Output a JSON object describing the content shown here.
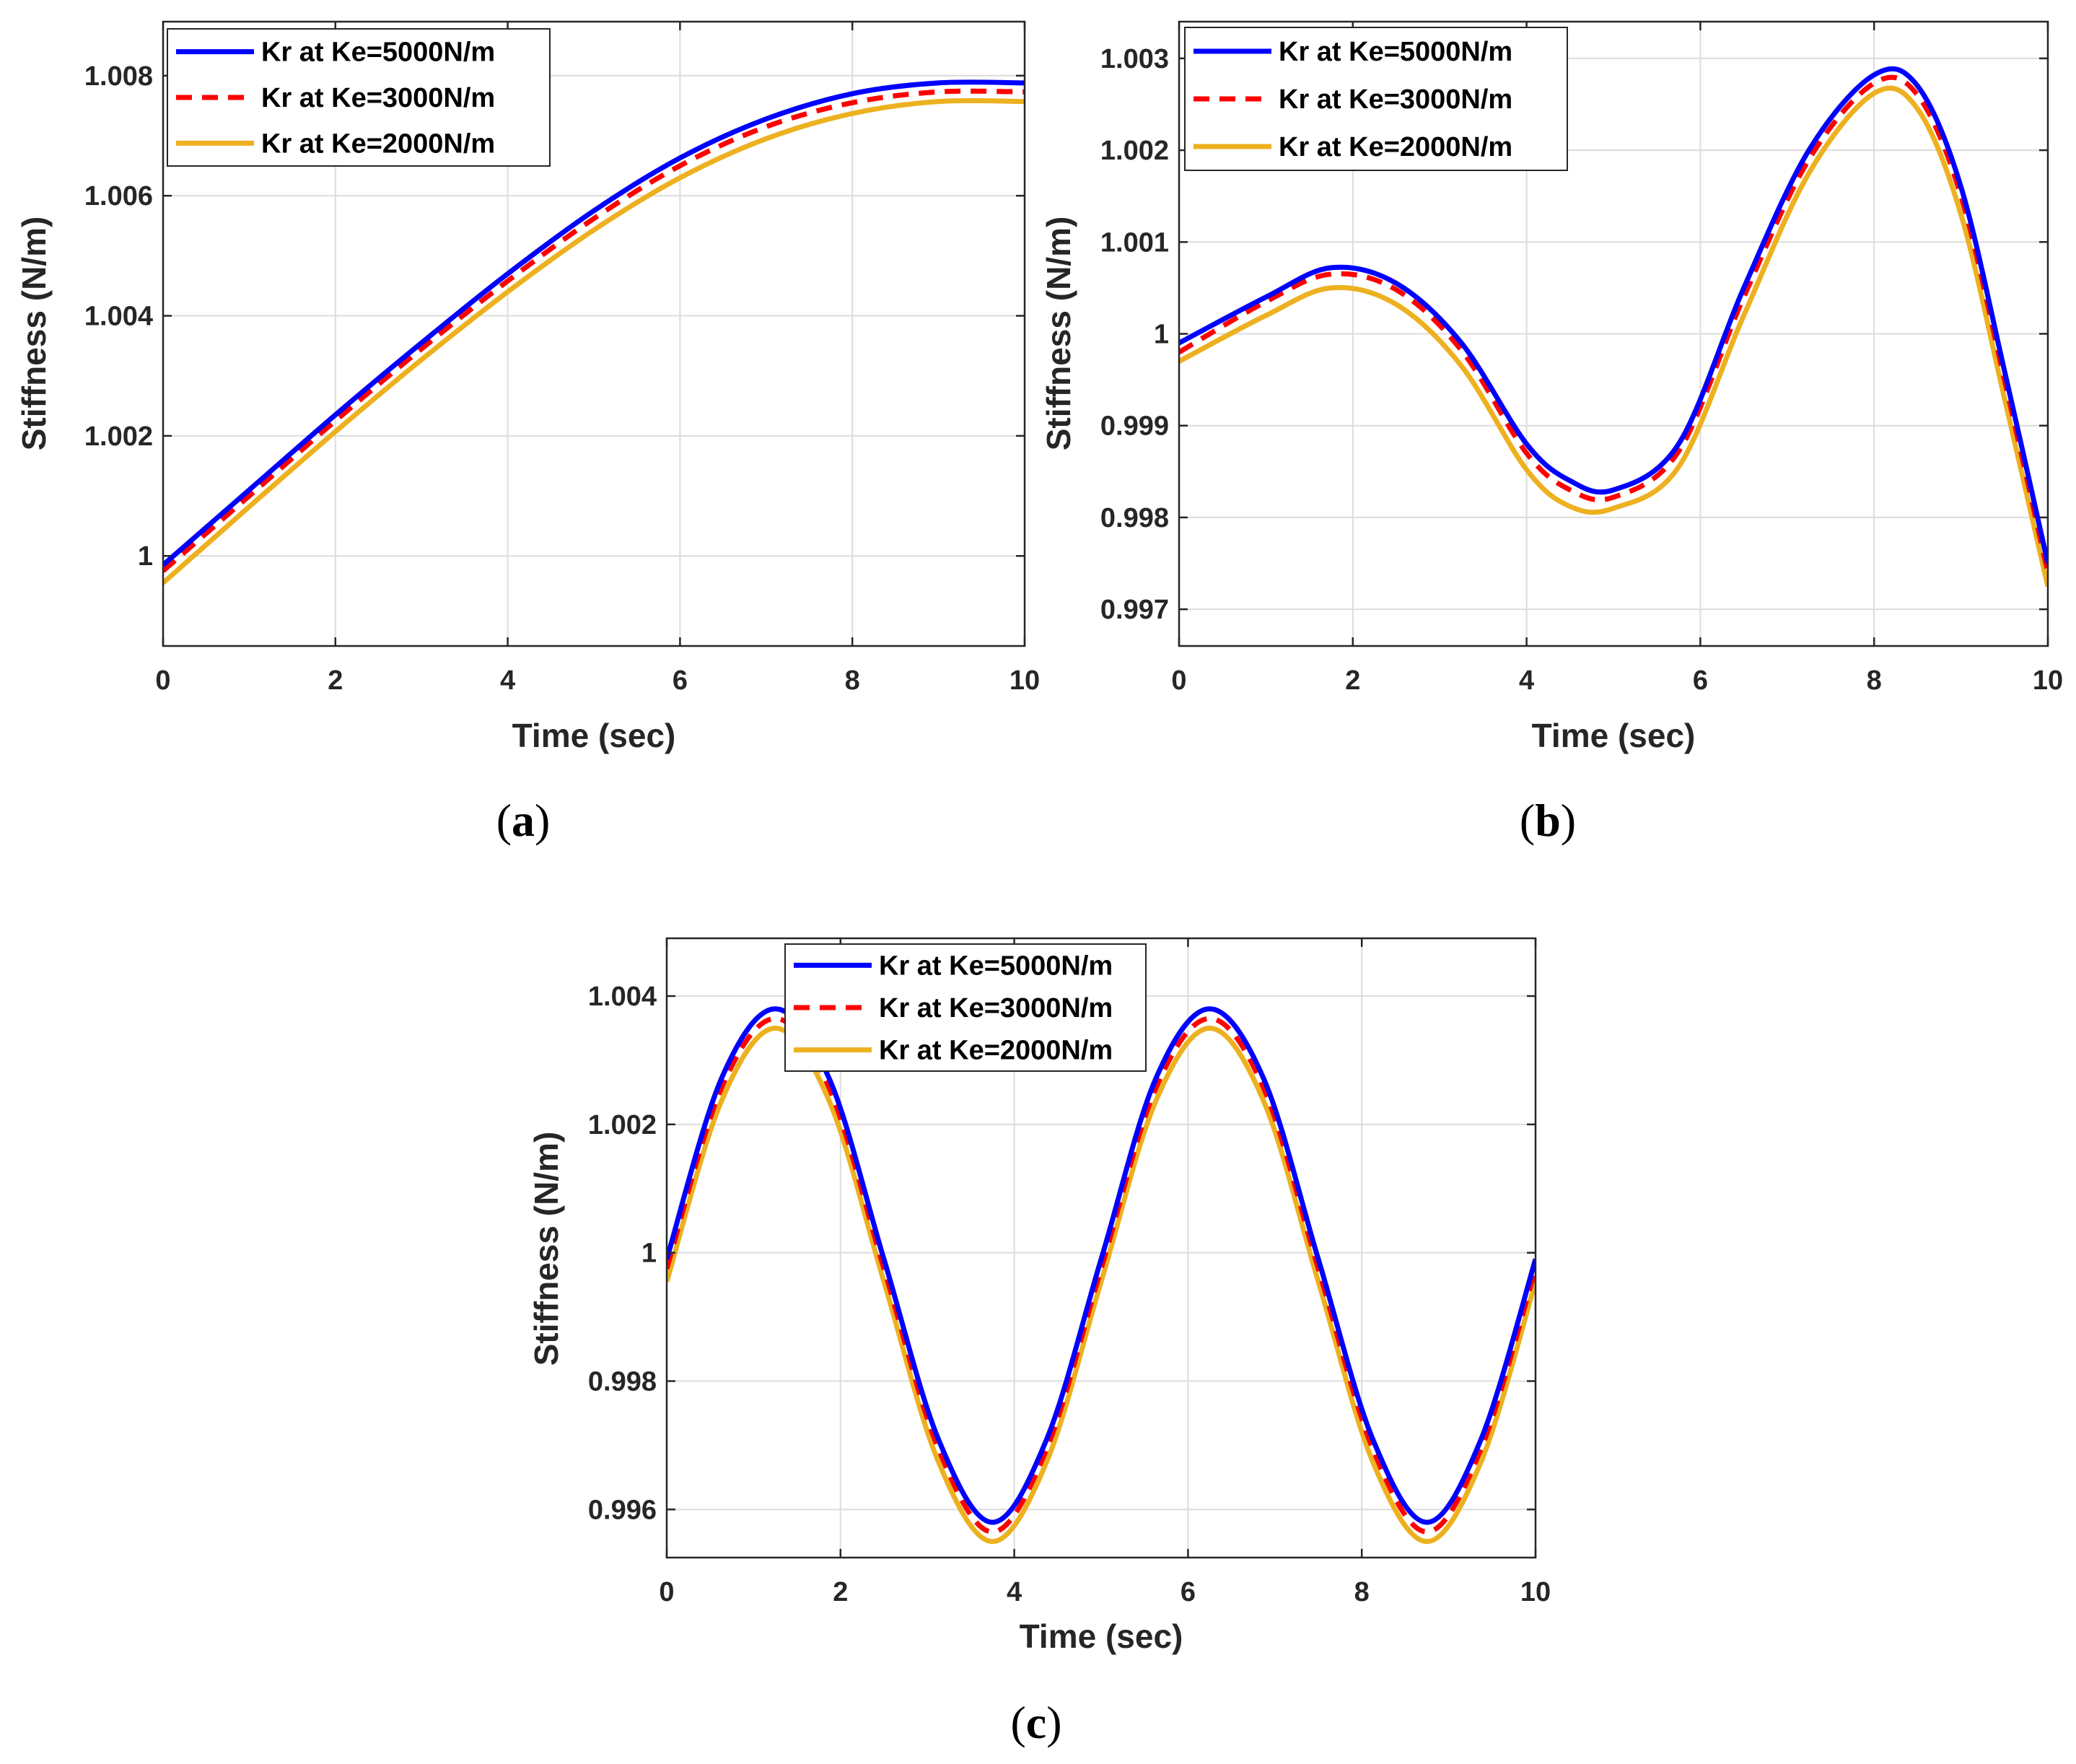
{
  "legend_labels": [
    "Kr at Ke=5000N/m",
    "Kr at Ke=3000N/m",
    "Kr at Ke=2000N/m"
  ],
  "series_colors": [
    "#0000ff",
    "#ff0000",
    "#edb120"
  ],
  "series_styles": [
    "solid",
    "dashed",
    "solid"
  ],
  "chart_data": [
    {
      "type": "line",
      "panel": "a",
      "caption": "(a)",
      "caption_letter": "a",
      "xlabel": "Time (sec)",
      "ylabel": "Stiffness (N/m)",
      "xlim": [
        0,
        10
      ],
      "ylim": [
        0.9985,
        1.0089
      ],
      "xticks": [
        0,
        2,
        4,
        6,
        8,
        10
      ],
      "xtick_labels": [
        "0",
        "2",
        "4",
        "6",
        "8",
        "10"
      ],
      "yticks": [
        1.0,
        1.002,
        1.004,
        1.006,
        1.008
      ],
      "ytick_labels": [
        "1",
        "1.002",
        "1.004",
        "1.006",
        "1.008"
      ],
      "grid": true,
      "legend_position": "top-left",
      "x": [
        0,
        1,
        2,
        3,
        4,
        5,
        6,
        7,
        8,
        9,
        10
      ],
      "series": [
        {
          "name": "Kr at Ke=5000N/m",
          "values": [
            0.99985,
            1.0011,
            1.00235,
            1.00355,
            1.0047,
            1.00575,
            1.00663,
            1.00728,
            1.0077,
            1.00788,
            1.00788
          ]
        },
        {
          "name": "Kr at Ke=3000N/m",
          "values": [
            0.99975,
            1.001,
            1.00225,
            1.00345,
            1.00458,
            1.00562,
            1.0065,
            1.00715,
            1.00755,
            1.00773,
            1.00773
          ]
        },
        {
          "name": "Kr at Ke=2000N/m",
          "values": [
            0.99955,
            1.00082,
            1.00207,
            1.00327,
            1.0044,
            1.00543,
            1.0063,
            1.00695,
            1.00737,
            1.00757,
            1.00757
          ]
        }
      ]
    },
    {
      "type": "line",
      "panel": "b",
      "caption": "(b)",
      "caption_letter": "b",
      "xlabel": "Time (sec)",
      "ylabel": "Stiffness (N/m)",
      "xlim": [
        0,
        10
      ],
      "ylim": [
        0.9966,
        1.0034
      ],
      "xticks": [
        0,
        2,
        4,
        6,
        8,
        10
      ],
      "xtick_labels": [
        "0",
        "2",
        "4",
        "6",
        "8",
        "10"
      ],
      "yticks": [
        0.997,
        0.998,
        0.999,
        1.0,
        1.001,
        1.002,
        1.003
      ],
      "ytick_labels": [
        "0.997",
        "0.998",
        "0.999",
        "1",
        "1.001",
        "1.002",
        "1.003"
      ],
      "grid": true,
      "legend_position": "top-left",
      "x": [
        0,
        1,
        1.75,
        2.5,
        3.25,
        4,
        4.5,
        5,
        5.75,
        6.5,
        7.25,
        8,
        8.5,
        9,
        9.5,
        10
      ],
      "series": [
        {
          "name": "Kr at Ke=5000N/m",
          "values": [
            0.9999,
            1.0004,
            1.00072,
            1.00055,
            0.9999,
            0.9988,
            0.9984,
            0.9983,
            0.9988,
            1.0005,
            1.002,
            1.00282,
            1.0027,
            1.0016,
            0.9996,
            0.9975
          ]
        },
        {
          "name": "Kr at Ke=3000N/m",
          "values": [
            0.9998,
            1.00035,
            1.00065,
            1.00048,
            0.99982,
            0.9987,
            0.9983,
            0.99822,
            0.99872,
            1.0004,
            1.0019,
            1.00273,
            1.0026,
            1.0015,
            0.9995,
            0.9974
          ]
        },
        {
          "name": "Kr at Ke=2000N/m",
          "values": [
            0.9997,
            1.0002,
            1.0005,
            1.00032,
            0.99965,
            0.99852,
            0.99812,
            0.9981,
            0.99855,
            1.0002,
            1.00175,
            1.00262,
            1.00245,
            1.0013,
            0.9993,
            0.99725
          ]
        }
      ]
    },
    {
      "type": "line",
      "panel": "c",
      "caption": "(c)",
      "caption_letter": "c",
      "xlabel": "Time (sec)",
      "ylabel": "Stiffness (N/m)",
      "xlim": [
        0,
        10
      ],
      "ylim": [
        0.99525,
        1.0049
      ],
      "xticks": [
        0,
        2,
        4,
        6,
        8,
        10
      ],
      "xtick_labels": [
        "0",
        "2",
        "4",
        "6",
        "8",
        "10"
      ],
      "yticks": [
        0.996,
        0.998,
        1.0,
        1.002,
        1.004
      ],
      "ytick_labels": [
        "0.996",
        "0.998",
        "1",
        "1.002",
        "1.004"
      ],
      "grid": true,
      "legend_position": "top-center",
      "x": [
        0,
        0.625,
        1.25,
        1.875,
        2.5,
        3.125,
        3.75,
        4.375,
        5,
        5.625,
        6.25,
        6.875,
        7.5,
        8.125,
        8.75,
        9.375,
        10
      ],
      "series": [
        {
          "name": "Kr at Ke=5000N/m",
          "values": [
            0.9999,
            1.0027,
            1.0038,
            1.0027,
            0.9999,
            0.9971,
            0.9958,
            0.9971,
            0.9999,
            1.0027,
            1.0038,
            1.0027,
            0.9999,
            0.9971,
            0.9958,
            0.9971,
            0.9999
          ]
        },
        {
          "name": "Kr at Ke=3000N/m",
          "values": [
            0.99975,
            1.00255,
            1.00365,
            1.00255,
            0.99975,
            0.99695,
            0.99565,
            0.99695,
            0.99975,
            1.00255,
            1.00365,
            1.00255,
            0.99975,
            0.99695,
            0.99565,
            0.99695,
            0.99975
          ]
        },
        {
          "name": "Kr at Ke=2000N/m",
          "values": [
            0.99955,
            1.00235,
            1.0035,
            1.00235,
            0.99955,
            0.99675,
            0.9955,
            0.99675,
            0.99955,
            1.00235,
            1.0035,
            1.00235,
            0.99955,
            0.99675,
            0.9955,
            0.99675,
            0.99955
          ]
        }
      ]
    }
  ]
}
